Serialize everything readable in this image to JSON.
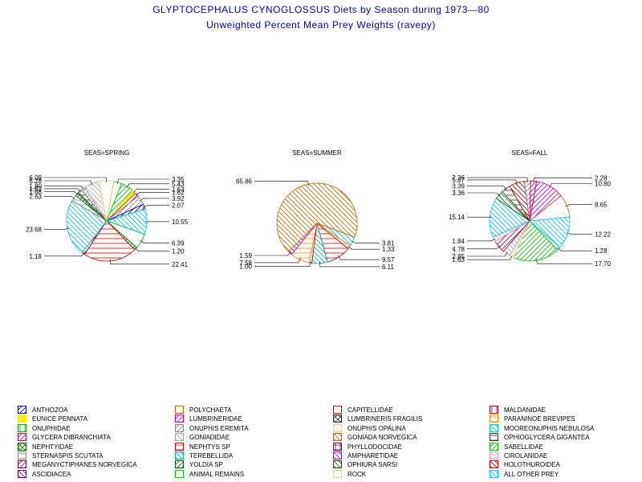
{
  "title": "GLYPTOCEPHALUS CYNOGLOSSUS Diets by Season during 1973—80",
  "subtitle": "Unweighted Percent Mean Prey Weights (ravepy)",
  "legend_items": [
    {
      "label": "ANTHOZOA",
      "color": "#0000cc",
      "pattern": "diag-right"
    },
    {
      "label": "EUNICE PENNATA",
      "color": "#ffee00",
      "pattern": "solid"
    },
    {
      "label": "ONUPHIDAE",
      "color": "#00aa00",
      "pattern": "vert"
    },
    {
      "label": "GLYCERA DIBRANCHIATA",
      "color": "#cc0066",
      "pattern": "diag-right"
    },
    {
      "label": "NEPHTYIDAE",
      "color": "#006600",
      "pattern": "cross"
    },
    {
      "label": "STERNASPIS SCUTATA",
      "color": "#888888",
      "pattern": "horiz"
    },
    {
      "label": "MEGANYCTIPHANES NORVEGICA",
      "color": "#990033",
      "pattern": "diag-right"
    },
    {
      "label": "ASCIDIACEA",
      "color": "#660066",
      "pattern": "diag-left"
    },
    {
      "label": "POLYCHAETA",
      "color": "#cc6600",
      "pattern": "empty"
    },
    {
      "label": "LUMBRINERIDAE",
      "color": "#cc00cc",
      "pattern": "diag-right"
    },
    {
      "label": "ONUPHIS EREMITA",
      "color": "#888888",
      "pattern": "diag-right"
    },
    {
      "label": "GONIADIDAE",
      "color": "#aaaaaa",
      "pattern": "diag-left"
    },
    {
      "label": "NEPHTYS SP",
      "color": "#cc0000",
      "pattern": "horiz"
    },
    {
      "label": "TEREBELLIDA",
      "color": "#00aacc",
      "pattern": "diag-left"
    },
    {
      "label": "YOLDIA SP",
      "color": "#006600",
      "pattern": "diag-right"
    },
    {
      "label": "ANIMAL REMAINS",
      "color": "#00cc00",
      "pattern": "empty"
    },
    {
      "label": "CAPITELLIDAE",
      "color": "#cc0000",
      "pattern": "empty"
    },
    {
      "label": "LUMBRINERIS FRAGILIS",
      "color": "#333333",
      "pattern": "cross"
    },
    {
      "label": "ONUPHIS OPALINA",
      "color": "#ffcc99",
      "pattern": "diag-left"
    },
    {
      "label": "GONIADA NORVEGICA",
      "color": "#cc6600",
      "pattern": "diag-left"
    },
    {
      "label": "PHYLLODOCIDAE",
      "color": "#660066",
      "pattern": "grid"
    },
    {
      "label": "AMPHARETIDAE",
      "color": "#cc00cc",
      "pattern": "diag-left"
    },
    {
      "label": "OPHIURA SARSI",
      "color": "#006600",
      "pattern": "diag-left"
    },
    {
      "label": "ROCK",
      "color": "#ffcc66",
      "pattern": "empty"
    },
    {
      "label": "MALDANIDAE",
      "color": "#990033",
      "pattern": "vert"
    },
    {
      "label": "PARANINOE BREVIPES",
      "color": "#ff8800",
      "pattern": "horiz"
    },
    {
      "label": "MOOREONUPHIS NEBULOSA",
      "color": "#00cccc",
      "pattern": "diag-left"
    },
    {
      "label": "OPHIOGLYCERA GIGANTEA",
      "color": "#333333",
      "pattern": "horiz"
    },
    {
      "label": "SABELLIDAE",
      "color": "#00cc00",
      "pattern": "diag-right"
    },
    {
      "label": "CIROLANIDAE",
      "color": "#ff99cc",
      "pattern": "diag-left"
    },
    {
      "label": "HOLOTHUROIDEA",
      "color": "#cc0000",
      "pattern": "diag-left"
    },
    {
      "label": "ALL OTHER PREY",
      "color": "#00ccff",
      "pattern": "diag-left"
    }
  ],
  "chart_data": [
    {
      "type": "pie",
      "title": "SEAS=SPRING",
      "slices": [
        {
          "prey": "ANIMAL REMAINS",
          "value": 3.35,
          "label": "3.35"
        },
        {
          "prey": "SABELLIDAE",
          "value": 5.43,
          "label": "5.43"
        },
        {
          "prey": "EUNICE PENNATA",
          "value": 1.63,
          "label": "1.63"
        },
        {
          "prey": "GLYCERA DIBRANCHIATA",
          "value": 1.62,
          "label": "1.62"
        },
        {
          "prey": "ONUPHIS EREMITA",
          "value": 3.92,
          "label": "3.92"
        },
        {
          "prey": "ANTHOZOA",
          "value": 2.07,
          "label": "2.07"
        },
        {
          "prey": "ALL OTHER PREY",
          "value": 10.55,
          "label": "10.55"
        },
        {
          "prey": "ANIMAL REMAINS",
          "value": 6.39,
          "label": "6.39"
        },
        {
          "prey": "YOLDIA SP",
          "value": 1.2,
          "label": "1.20"
        },
        {
          "prey": "NEPHTYS SP",
          "value": 22.41,
          "label": "22.41"
        },
        {
          "prey": "MEGANYCTIPHANES NORVEGICA",
          "value": 1.18,
          "label": "1.18"
        },
        {
          "prey": "MOOREONUPHIS NEBULOSA",
          "value": 23.68,
          "label": "23.68"
        },
        {
          "prey": "STERNASPIS SCUTATA",
          "value": 2.63,
          "label": "2.63"
        },
        {
          "prey": "NEPHTYIDAE",
          "value": 1.68,
          "label": "1.68"
        },
        {
          "prey": "OPHIOGLYCERA GIGANTEA",
          "value": 1.62,
          "label": "1.62"
        },
        {
          "prey": "ONUPHIS EREMITA",
          "value": 1.8,
          "label": "1.80"
        },
        {
          "prey": "GONIADIDAE",
          "value": 6.28,
          "label": "6.28"
        },
        {
          "prey": "ROCK",
          "value": 6.09,
          "label": "6.09"
        }
      ]
    },
    {
      "type": "pie",
      "title": "SEAS=SUMMER",
      "slices": [
        {
          "prey": "MOOREONUPHIS NEBULOSA",
          "value": 3.81,
          "label": "3.81"
        },
        {
          "prey": "PARANINOE BREVIPES",
          "value": 1.33,
          "label": "1.33"
        },
        {
          "prey": "NEPHTYS SP",
          "value": 9.57,
          "label": "9.57"
        },
        {
          "prey": "TEREBELLIDA",
          "value": 6.11,
          "label": "6.11"
        },
        {
          "prey": "CAPITELLIDAE",
          "value": 1.0,
          "label": "1.00"
        },
        {
          "prey": "PARANINOE BREVIPES",
          "value": 7.58,
          "label": "7.58"
        },
        {
          "prey": "AMPHARETIDAE",
          "value": 1.59,
          "label": "1.59"
        },
        {
          "prey": "GONIADA NORVEGICA",
          "value": 65.86,
          "label": "65.86"
        }
      ]
    },
    {
      "type": "pie",
      "title": "SEAS=FALL",
      "slices": [
        {
          "prey": "LUMBRINERIDAE",
          "value": 10.8,
          "label": "10.80"
        },
        {
          "prey": "POLYCHAETA",
          "value": 8.65,
          "label": "8.65"
        },
        {
          "prey": "ALL OTHER PREY",
          "value": 12.22,
          "label": "12.22"
        },
        {
          "prey": "MOOREONUPHIS NEBULOSA",
          "value": 1.28,
          "label": "1.28"
        },
        {
          "prey": "SABELLIDAE",
          "value": 17.7,
          "label": "17.70"
        },
        {
          "prey": "ONUPHIS OPALINA",
          "value": 1.63,
          "label": "1.63"
        },
        {
          "prey": "GONIADIDAE",
          "value": 2.85,
          "label": "2.85"
        },
        {
          "prey": "MEGANYCTIPHANES NORVEGICA",
          "value": 4.78,
          "label": "4.78"
        },
        {
          "prey": "CIROLANIDAE",
          "value": 1.84,
          "label": "1.84"
        },
        {
          "prey": "ALL OTHER PREY",
          "value": 15.14,
          "label": "15.14"
        },
        {
          "prey": "OPHIURA SARSI",
          "value": 3.36,
          "label": "3.36"
        },
        {
          "prey": "OPHIOGLYCERA GIGANTEA",
          "value": 3.39,
          "label": "3.39"
        },
        {
          "prey": "HOLOTHUROIDEA",
          "value": 5.87,
          "label": "5.87"
        },
        {
          "prey": "ONUPHIS EREMITA",
          "value": 2.36,
          "label": "2.36"
        },
        {
          "prey": "GLYCERA DIBRANCHIATA",
          "value": 2.28,
          "label": "2.28"
        }
      ]
    }
  ]
}
